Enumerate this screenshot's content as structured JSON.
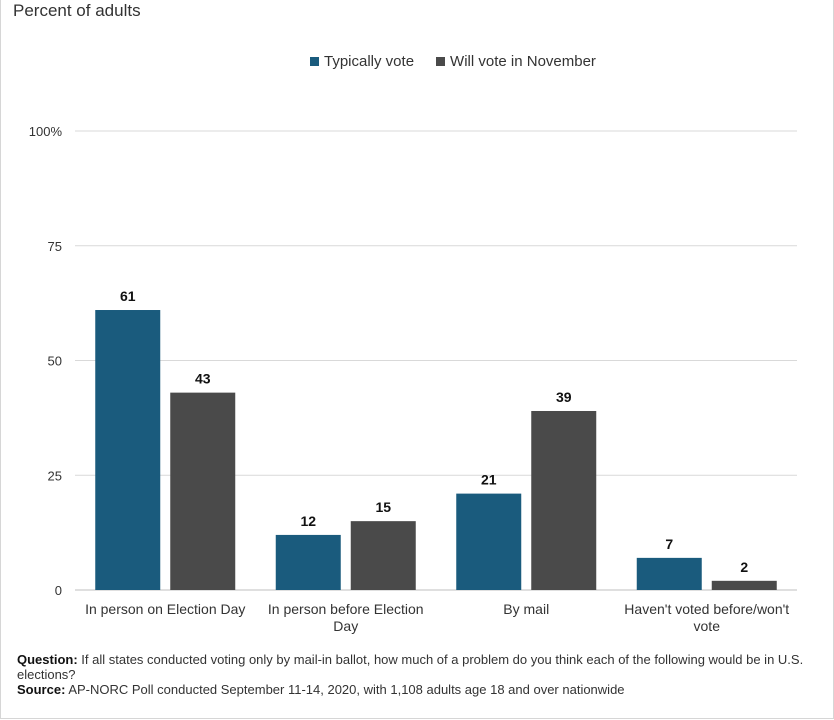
{
  "subtitle": "Percent of adults",
  "colors": {
    "typically": "#1a5b7d",
    "will": "#4a4a4a",
    "grid": "#d9d9d9",
    "axis": "#bfbfbf"
  },
  "footnote": {
    "question_label": "Question:",
    "question_text": "If all states conducted voting only by mail-in ballot, how much of a problem do you think each of the following would be in U.S. elections?",
    "source_label": "Source:",
    "source_text": "AP-NORC Poll conducted September 11-14, 2020, with 1,108 adults age 18 and over nationwide"
  },
  "chart_data": {
    "type": "bar",
    "categories": [
      [
        "In person on Election Day"
      ],
      [
        "In person before Election",
        "Day"
      ],
      [
        "By mail"
      ],
      [
        "Haven't voted before/won't",
        "vote"
      ]
    ],
    "series": [
      {
        "name": "Typically vote",
        "values": [
          61,
          12,
          21,
          7
        ]
      },
      {
        "name": "Will vote in November",
        "values": [
          43,
          15,
          39,
          2
        ]
      }
    ],
    "ylim": [
      0,
      100
    ],
    "yticks": [
      {
        "value": 0,
        "label": "0"
      },
      {
        "value": 25,
        "label": "25"
      },
      {
        "value": 50,
        "label": "50"
      },
      {
        "value": 75,
        "label": "75"
      },
      {
        "value": 100,
        "label": "100%"
      }
    ],
    "grid": true,
    "legend_position": "top-center"
  }
}
